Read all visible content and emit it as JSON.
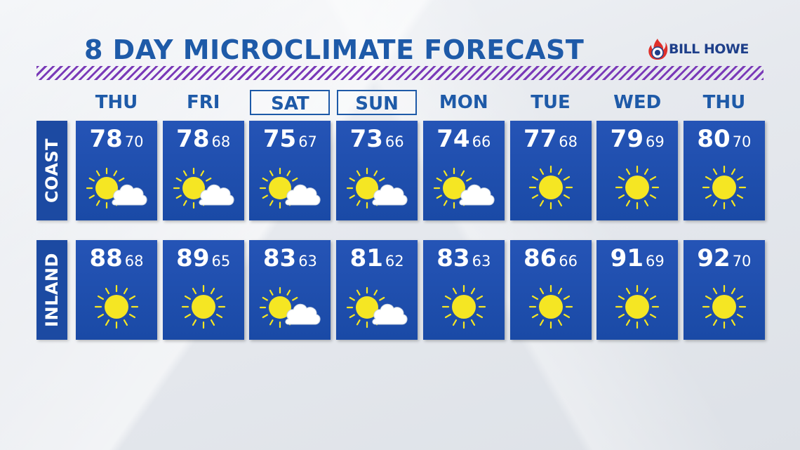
{
  "title": "8 DAY MICROCLIMATE FORECAST",
  "sponsor": "BILL HOWE",
  "colors": {
    "title": "#1e5aa8",
    "tile": "#1c4aa2",
    "stripe": "#7a3ab8",
    "sun": "#f5e623"
  },
  "days": [
    {
      "label": "THU",
      "highlight": false
    },
    {
      "label": "FRI",
      "highlight": false
    },
    {
      "label": "SAT",
      "highlight": true
    },
    {
      "label": "SUN",
      "highlight": true
    },
    {
      "label": "MON",
      "highlight": false
    },
    {
      "label": "TUE",
      "highlight": false
    },
    {
      "label": "WED",
      "highlight": false
    },
    {
      "label": "THU",
      "highlight": false
    }
  ],
  "rows": [
    {
      "label": "COAST",
      "forecasts": [
        {
          "high": "78",
          "low": "70",
          "icon": "partly-cloudy-icon"
        },
        {
          "high": "78",
          "low": "68",
          "icon": "partly-cloudy-icon"
        },
        {
          "high": "75",
          "low": "67",
          "icon": "partly-cloudy-icon"
        },
        {
          "high": "73",
          "low": "66",
          "icon": "partly-cloudy-icon"
        },
        {
          "high": "74",
          "low": "66",
          "icon": "partly-cloudy-icon"
        },
        {
          "high": "77",
          "low": "68",
          "icon": "sunny-icon"
        },
        {
          "high": "79",
          "low": "69",
          "icon": "sunny-icon"
        },
        {
          "high": "80",
          "low": "70",
          "icon": "sunny-icon"
        }
      ]
    },
    {
      "label": "INLAND",
      "forecasts": [
        {
          "high": "88",
          "low": "68",
          "icon": "sunny-icon"
        },
        {
          "high": "89",
          "low": "65",
          "icon": "sunny-icon"
        },
        {
          "high": "83",
          "low": "63",
          "icon": "partly-cloudy-icon"
        },
        {
          "high": "81",
          "low": "62",
          "icon": "partly-cloudy-icon"
        },
        {
          "high": "83",
          "low": "63",
          "icon": "sunny-icon"
        },
        {
          "high": "86",
          "low": "66",
          "icon": "sunny-icon"
        },
        {
          "high": "91",
          "low": "69",
          "icon": "sunny-icon"
        },
        {
          "high": "92",
          "low": "70",
          "icon": "sunny-icon"
        }
      ]
    }
  ]
}
